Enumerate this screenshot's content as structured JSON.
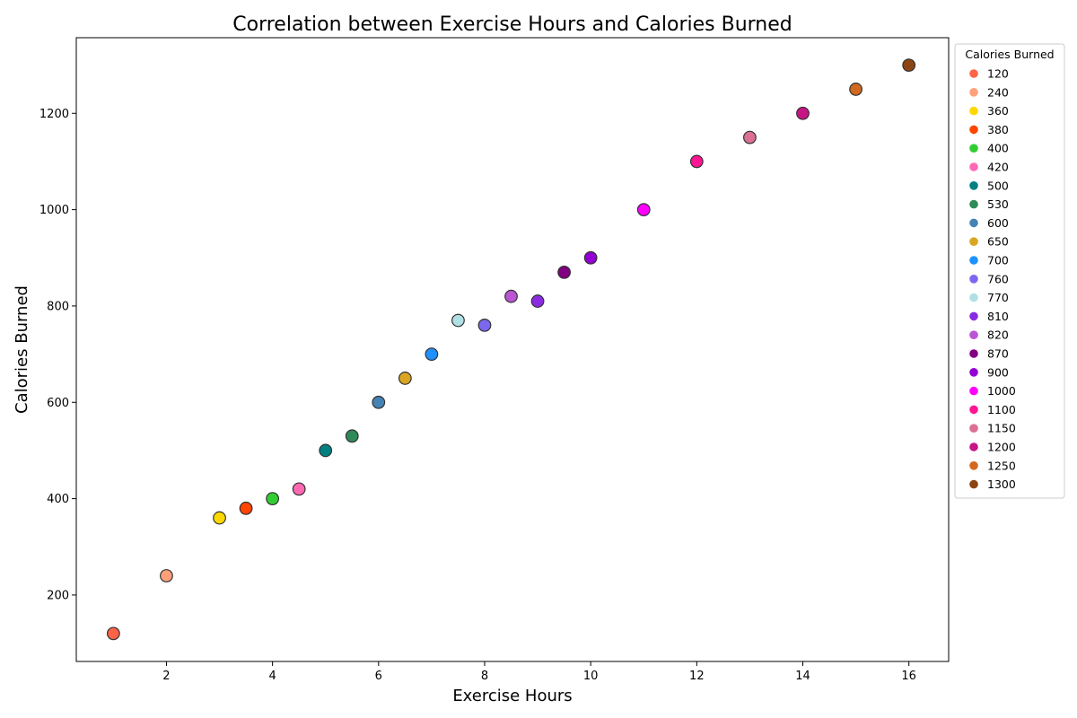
{
  "chart_data": {
    "type": "scatter",
    "title": "Correlation between Exercise Hours and Calories Burned",
    "xlabel": "Exercise Hours",
    "ylabel": "Calories Burned",
    "xlim": [
      0.3,
      16.75
    ],
    "ylim": [
      62,
      1357
    ],
    "xticks": [
      2,
      4,
      6,
      8,
      10,
      12,
      14,
      16
    ],
    "yticks": [
      200,
      400,
      600,
      800,
      1000,
      1200
    ],
    "grid": false,
    "legend": {
      "title": "Calories Burned",
      "placement": "outside-right-top"
    },
    "points": [
      {
        "x": 1,
        "y": 120,
        "label": "120",
        "color": "#ff6347"
      },
      {
        "x": 2,
        "y": 240,
        "label": "240",
        "color": "#ffa07a"
      },
      {
        "x": 3,
        "y": 360,
        "label": "360",
        "color": "#ffd700"
      },
      {
        "x": 3.5,
        "y": 380,
        "label": "380",
        "color": "#ff4500"
      },
      {
        "x": 4,
        "y": 400,
        "label": "400",
        "color": "#32cd32"
      },
      {
        "x": 4.5,
        "y": 420,
        "label": "420",
        "color": "#ff69b4"
      },
      {
        "x": 5,
        "y": 500,
        "label": "500",
        "color": "#008080"
      },
      {
        "x": 5.5,
        "y": 530,
        "label": "530",
        "color": "#2e8b57"
      },
      {
        "x": 6,
        "y": 600,
        "label": "600",
        "color": "#4682b4"
      },
      {
        "x": 6.5,
        "y": 650,
        "label": "650",
        "color": "#daa520"
      },
      {
        "x": 7,
        "y": 700,
        "label": "700",
        "color": "#1e90ff"
      },
      {
        "x": 8,
        "y": 760,
        "label": "760",
        "color": "#7b68ee"
      },
      {
        "x": 7.5,
        "y": 770,
        "label": "770",
        "color": "#b0e0e6"
      },
      {
        "x": 9,
        "y": 810,
        "label": "810",
        "color": "#8a2be2"
      },
      {
        "x": 8.5,
        "y": 820,
        "label": "820",
        "color": "#ba55d3"
      },
      {
        "x": 9.5,
        "y": 870,
        "label": "870",
        "color": "#800080"
      },
      {
        "x": 10,
        "y": 900,
        "label": "900",
        "color": "#9400d3"
      },
      {
        "x": 11,
        "y": 1000,
        "label": "1000",
        "color": "#ff00ff"
      },
      {
        "x": 12,
        "y": 1100,
        "label": "1100",
        "color": "#ff1493"
      },
      {
        "x": 13,
        "y": 1150,
        "label": "1150",
        "color": "#db7093"
      },
      {
        "x": 14,
        "y": 1200,
        "label": "1200",
        "color": "#c71585"
      },
      {
        "x": 15,
        "y": 1250,
        "label": "1250",
        "color": "#d2691e"
      },
      {
        "x": 16,
        "y": 1300,
        "label": "1300",
        "color": "#8b4513"
      }
    ]
  }
}
